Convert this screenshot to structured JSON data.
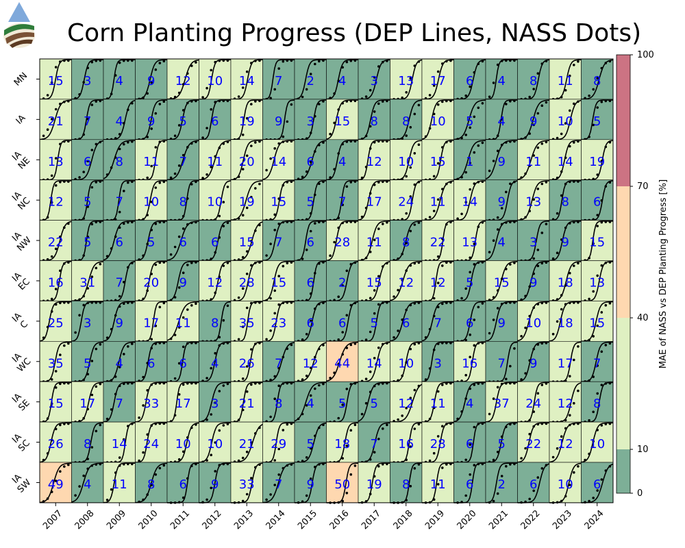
{
  "title": "Corn Planting Progress (DEP Lines, NASS Dots)",
  "chart_data": {
    "type": "heatmap",
    "title": "Corn Planting Progress (DEP Lines, NASS Dots)",
    "rows": [
      {
        "line1": "",
        "line2": "MN"
      },
      {
        "line1": "",
        "line2": "IA"
      },
      {
        "line1": "IA",
        "line2": "NE"
      },
      {
        "line1": "IA",
        "line2": "NC"
      },
      {
        "line1": "IA",
        "line2": "NW"
      },
      {
        "line1": "IA",
        "line2": "EC"
      },
      {
        "line1": "IA",
        "line2": "C"
      },
      {
        "line1": "IA",
        "line2": "WC"
      },
      {
        "line1": "IA",
        "line2": "SE"
      },
      {
        "line1": "IA",
        "line2": "SC"
      },
      {
        "line1": "IA",
        "line2": "SW"
      }
    ],
    "columns": [
      "2007",
      "2008",
      "2009",
      "2010",
      "2011",
      "2012",
      "2013",
      "2014",
      "2015",
      "2016",
      "2017",
      "2018",
      "2019",
      "2020",
      "2021",
      "2022",
      "2023",
      "2024"
    ],
    "values": [
      [
        15,
        3,
        4,
        9,
        12,
        10,
        14,
        7,
        2,
        4,
        3,
        13,
        17,
        6,
        4,
        8,
        11,
        8
      ],
      [
        21,
        7,
        4,
        9,
        5,
        6,
        19,
        9,
        3,
        15,
        8,
        8,
        10,
        5,
        4,
        9,
        10,
        5
      ],
      [
        13,
        6,
        8,
        11,
        7,
        11,
        20,
        14,
        6,
        4,
        12,
        10,
        15,
        1,
        9,
        11,
        14,
        19
      ],
      [
        12,
        5,
        7,
        10,
        8,
        10,
        19,
        15,
        5,
        7,
        17,
        24,
        11,
        14,
        9,
        13,
        8,
        6
      ],
      [
        22,
        5,
        6,
        5,
        6,
        6,
        15,
        7,
        6,
        28,
        11,
        8,
        22,
        13,
        4,
        3,
        9,
        15
      ],
      [
        16,
        31,
        7,
        20,
        9,
        12,
        28,
        15,
        6,
        2,
        15,
        12,
        12,
        5,
        15,
        9,
        18,
        13
      ],
      [
        25,
        3,
        9,
        17,
        11,
        8,
        35,
        23,
        6,
        6,
        5,
        6,
        7,
        6,
        9,
        10,
        18,
        15
      ],
      [
        35,
        5,
        4,
        6,
        6,
        4,
        26,
        7,
        12,
        44,
        14,
        10,
        3,
        16,
        7,
        9,
        17,
        7
      ],
      [
        15,
        17,
        7,
        33,
        17,
        3,
        21,
        8,
        4,
        5,
        5,
        12,
        11,
        4,
        37,
        24,
        12,
        8
      ],
      [
        26,
        8,
        14,
        24,
        10,
        10,
        21,
        29,
        5,
        18,
        7,
        16,
        28,
        6,
        5,
        22,
        12,
        10
      ],
      [
        49,
        4,
        11,
        8,
        6,
        9,
        33,
        7,
        9,
        50,
        19,
        8,
        11,
        6,
        2,
        6,
        10,
        6
      ]
    ],
    "colorbar": {
      "label": "MAE of NASS vs DEP Planting Progress [%]",
      "ticks": [
        0,
        10,
        40,
        70,
        100
      ],
      "bins": [
        {
          "min": 0,
          "max": 10,
          "color": "#7daf97"
        },
        {
          "min": 10,
          "max": 40,
          "color": "#dff0c2"
        },
        {
          "min": 40,
          "max": 70,
          "color": "#fed8b0"
        },
        {
          "min": 70,
          "max": 100,
          "color": "#cc7383"
        }
      ]
    },
    "value_text_color": "#0000ff",
    "line_color": "#000000",
    "dot_color": "#000000"
  }
}
